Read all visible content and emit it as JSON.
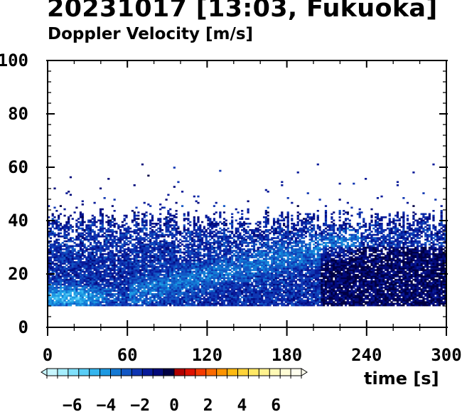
{
  "header": {
    "title": "20231017 [13:03, Fukuoka]",
    "subtitle": "Doppler Velocity [m/s]"
  },
  "chart_data": {
    "type": "heatmap",
    "title": "20231017 [13:03, Fukuoka]",
    "subtitle": "Doppler Velocity [m/s]",
    "xlabel": "time [s]",
    "ylabel": "",
    "xlim": [
      0,
      300
    ],
    "ylim": [
      0,
      100
    ],
    "x_ticks": [
      0,
      60,
      120,
      180,
      240,
      300
    ],
    "y_ticks": [
      0,
      20,
      40,
      60,
      80,
      100
    ],
    "grid": false,
    "data_bottom_height": 8,
    "typical_top_height": 40,
    "value_summary": "mostly negative velocities (-1 to -5 m/s); strongest (about -6) near 10 m at 0-40 s",
    "colorbar": {
      "range": [
        -7.5,
        7.5
      ],
      "ticks": [
        -6,
        -4,
        -2,
        0,
        2,
        4,
        6
      ],
      "tick_labels": [
        "−6",
        "−4",
        "−2",
        "0",
        "2",
        "4",
        "6"
      ],
      "colors": [
        "#c8f6ff",
        "#a6eefe",
        "#80e0fb",
        "#59cdf6",
        "#34b5ee",
        "#1d99e2",
        "#1479d4",
        "#1257c4",
        "#0f36b2",
        "#081a99",
        "#030a7a",
        "#000044",
        "#b10000",
        "#dd1100",
        "#f53a00",
        "#fb6a00",
        "#fd9400",
        "#ffba11",
        "#ffd43a",
        "#ffe866",
        "#fff28f",
        "#fff9b6",
        "#fffcd6",
        "#fffeee"
      ]
    }
  }
}
